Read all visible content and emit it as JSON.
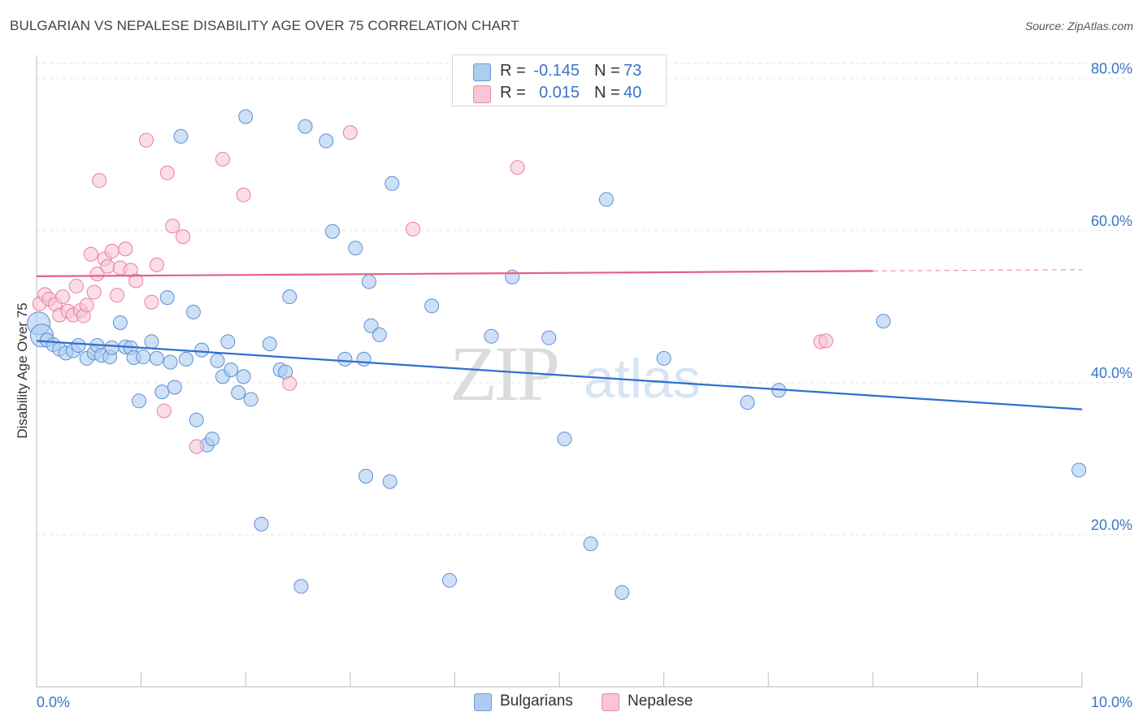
{
  "title": "BULGARIAN VS NEPALESE DISABILITY AGE OVER 75 CORRELATION CHART",
  "source": "Source: ZipAtlas.com",
  "watermark": {
    "zip": "ZIP",
    "atlas": "atlas"
  },
  "legend_top": {
    "rows": [
      {
        "r_label": "R =",
        "r_value": "-0.145",
        "n_label": "N =",
        "n_value": "73",
        "color": "#aecbf0",
        "border": "#6c9bd9"
      },
      {
        "r_label": "R =",
        "r_value": "0.015",
        "n_label": "N =",
        "n_value": "40",
        "color": "#f8c6d5",
        "border": "#e88aa8"
      }
    ]
  },
  "legend_bottom": [
    {
      "label": "Bulgarians",
      "color": "#aecbf0",
      "border": "#6c9bd9"
    },
    {
      "label": "Nepalese",
      "color": "#f8c6d5",
      "border": "#e88aa8"
    }
  ],
  "chart_data": {
    "type": "scatter",
    "title": "BULGARIAN VS NEPALESE DISABILITY AGE OVER 75 CORRELATION CHART",
    "xlabel": "",
    "ylabel": "Disability Age Over 75",
    "xlim": [
      0,
      10
    ],
    "ylim": [
      0,
      82
    ],
    "x_tick_labels": [
      "0.0%",
      "10.0%"
    ],
    "y_ticks": [
      20,
      40,
      60,
      80
    ],
    "y_tick_labels": [
      "20.0%",
      "40.0%",
      "60.0%",
      "80.0%"
    ],
    "grid": true,
    "legend_position": "top-center",
    "series": [
      {
        "name": "Bulgarians",
        "color": "#5b8fd6",
        "fill": "#aecbf0",
        "trend": {
          "x": [
            0.0,
            10.0
          ],
          "y": [
            45.5,
            36.5
          ],
          "color": "#2f6fce"
        },
        "points": [
          [
            0.02,
            47.8
          ],
          [
            0.05,
            46.2
          ],
          [
            0.1,
            45.6
          ],
          [
            0.16,
            45.0
          ],
          [
            0.22,
            44.4
          ],
          [
            0.28,
            43.9
          ],
          [
            0.35,
            44.2
          ],
          [
            0.4,
            44.9
          ],
          [
            0.48,
            43.2
          ],
          [
            0.55,
            43.9
          ],
          [
            0.58,
            44.9
          ],
          [
            0.62,
            43.6
          ],
          [
            0.7,
            43.4
          ],
          [
            0.72,
            44.6
          ],
          [
            0.8,
            47.9
          ],
          [
            0.85,
            44.7
          ],
          [
            0.9,
            44.6
          ],
          [
            0.93,
            43.3
          ],
          [
            0.98,
            37.6
          ],
          [
            1.02,
            43.4
          ],
          [
            1.1,
            45.4
          ],
          [
            1.15,
            43.2
          ],
          [
            1.2,
            38.8
          ],
          [
            1.25,
            51.2
          ],
          [
            1.28,
            42.7
          ],
          [
            1.32,
            39.4
          ],
          [
            1.38,
            72.4
          ],
          [
            1.43,
            43.1
          ],
          [
            1.5,
            49.3
          ],
          [
            1.53,
            35.1
          ],
          [
            1.58,
            44.3
          ],
          [
            1.63,
            31.8
          ],
          [
            1.68,
            32.6
          ],
          [
            1.73,
            42.9
          ],
          [
            1.78,
            40.8
          ],
          [
            1.83,
            45.4
          ],
          [
            1.86,
            41.7
          ],
          [
            1.93,
            38.7
          ],
          [
            1.98,
            40.8
          ],
          [
            2.0,
            75.0
          ],
          [
            2.05,
            37.8
          ],
          [
            2.15,
            21.4
          ],
          [
            2.23,
            45.1
          ],
          [
            2.33,
            41.7
          ],
          [
            2.38,
            41.4
          ],
          [
            2.42,
            51.3
          ],
          [
            2.53,
            13.2
          ],
          [
            2.57,
            73.7
          ],
          [
            2.77,
            71.8
          ],
          [
            2.83,
            59.9
          ],
          [
            2.95,
            43.1
          ],
          [
            3.05,
            57.7
          ],
          [
            3.13,
            43.1
          ],
          [
            3.15,
            27.7
          ],
          [
            3.18,
            53.3
          ],
          [
            3.2,
            47.5
          ],
          [
            3.28,
            46.3
          ],
          [
            3.38,
            27.0
          ],
          [
            3.4,
            66.2
          ],
          [
            3.78,
            50.1
          ],
          [
            3.95,
            14.0
          ],
          [
            4.35,
            46.1
          ],
          [
            4.55,
            53.9
          ],
          [
            4.9,
            45.9
          ],
          [
            5.05,
            32.6
          ],
          [
            5.3,
            18.8
          ],
          [
            5.45,
            64.1
          ],
          [
            5.6,
            12.4
          ],
          [
            6.0,
            43.2
          ],
          [
            6.8,
            37.4
          ],
          [
            7.1,
            39.0
          ],
          [
            8.1,
            48.1
          ],
          [
            9.97,
            28.5
          ]
        ]
      },
      {
        "name": "Nepalese",
        "color": "#e87ea0",
        "fill": "#f8c6d5",
        "trend": {
          "x": [
            0.0,
            8.0
          ],
          "y": [
            54.0,
            54.7
          ],
          "dashed_to": 10.0,
          "color": "#e5608c"
        },
        "points": [
          [
            0.03,
            50.4
          ],
          [
            0.08,
            51.6
          ],
          [
            0.12,
            51.0
          ],
          [
            0.18,
            50.3
          ],
          [
            0.22,
            48.9
          ],
          [
            0.25,
            51.3
          ],
          [
            0.3,
            49.4
          ],
          [
            0.35,
            48.9
          ],
          [
            0.38,
            52.7
          ],
          [
            0.42,
            49.5
          ],
          [
            0.45,
            48.8
          ],
          [
            0.48,
            50.2
          ],
          [
            0.52,
            56.9
          ],
          [
            0.55,
            51.9
          ],
          [
            0.58,
            54.3
          ],
          [
            0.6,
            66.6
          ],
          [
            0.65,
            56.3
          ],
          [
            0.68,
            55.3
          ],
          [
            0.72,
            57.3
          ],
          [
            0.77,
            51.5
          ],
          [
            0.8,
            55.1
          ],
          [
            0.85,
            57.6
          ],
          [
            0.9,
            54.8
          ],
          [
            0.95,
            53.4
          ],
          [
            1.05,
            71.9
          ],
          [
            1.1,
            50.6
          ],
          [
            1.15,
            55.5
          ],
          [
            1.22,
            36.3
          ],
          [
            1.25,
            67.6
          ],
          [
            1.3,
            60.6
          ],
          [
            1.4,
            59.2
          ],
          [
            1.53,
            31.6
          ],
          [
            1.78,
            69.4
          ],
          [
            1.98,
            64.7
          ],
          [
            2.42,
            39.9
          ],
          [
            3.0,
            72.9
          ],
          [
            4.6,
            68.3
          ],
          [
            7.5,
            45.4
          ],
          [
            7.55,
            45.5
          ],
          [
            3.6,
            60.2
          ]
        ]
      }
    ]
  }
}
